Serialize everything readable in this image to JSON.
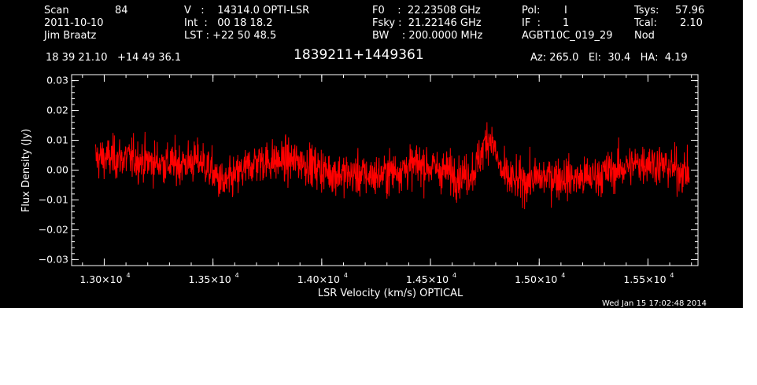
{
  "header": {
    "col1": {
      "scan_label": "Scan",
      "scan_value": "84",
      "date": "2011-10-10",
      "observer": "Jim Braatz"
    },
    "col2": {
      "v_line": "V   :    14314.0 OPTI-LSR",
      "int_line": "Int  :   00 18 18.2",
      "lst_line": "LST : +22 50 48.5"
    },
    "col3": {
      "f0_line": "F0    :  22.23508 GHz",
      "fsky_line": "Fsky :  21.22146 GHz",
      "bw_line": "BW    : 200.0000 MHz"
    },
    "col4": {
      "pol_label": "Pol:",
      "pol_value": "I",
      "if_label": "IF  :",
      "if_value": "1",
      "project": "AGBT10C_019_29"
    },
    "col5": {
      "tsys_label": "Tsys:",
      "tsys_value": "57.96",
      "tcal_label": "Tcal:",
      "tcal_value": "2.10",
      "mode": "Nod"
    },
    "coords": "18 39 21.10   +14 49 36.1",
    "source": "1839211+1449361",
    "pointing": "Az: 265.0   El:  30.4   HA:  4.19"
  },
  "timestamp": "Wed Jan 15 17:02:48 2014",
  "chart_data": {
    "type": "line",
    "title": "1839211+1449361",
    "xlabel": "LSR Velocity (km/s) OPTICAL",
    "ylabel": "Flux Density (Jy)",
    "xlim": [
      12850,
      15730
    ],
    "ylim": [
      -0.032,
      0.032
    ],
    "x_ticks": [
      {
        "value": 13000,
        "mantissa": "1.30",
        "exponent": "4"
      },
      {
        "value": 13500,
        "mantissa": "1.35",
        "exponent": "4"
      },
      {
        "value": 14000,
        "mantissa": "1.40",
        "exponent": "4"
      },
      {
        "value": 14500,
        "mantissa": "1.45",
        "exponent": "4"
      },
      {
        "value": 15000,
        "mantissa": "1.50",
        "exponent": "4"
      },
      {
        "value": 15500,
        "mantissa": "1.55",
        "exponent": "4"
      }
    ],
    "y_ticks": [
      {
        "value": 0.03,
        "label": "0.03"
      },
      {
        "value": 0.02,
        "label": "0.02"
      },
      {
        "value": 0.01,
        "label": "0.01"
      },
      {
        "value": 0.0,
        "label": "0.00"
      },
      {
        "value": -0.01,
        "label": "−0.01"
      },
      {
        "value": -0.02,
        "label": "−0.02"
      },
      {
        "value": -0.03,
        "label": "−0.03"
      }
    ],
    "grid": false,
    "series": [
      {
        "color": "#ff0000",
        "x_range": [
          12960,
          15690
        ],
        "noise_rms": 0.0055,
        "baseline_trend": [
          [
            12960,
            0.004
          ],
          [
            13100,
            0.004
          ],
          [
            13300,
            0.002
          ],
          [
            13450,
            0.003
          ],
          [
            13550,
            -0.005
          ],
          [
            13700,
            0.003
          ],
          [
            13900,
            0.003
          ],
          [
            14050,
            -0.001
          ],
          [
            14250,
            -0.002
          ],
          [
            14450,
            0.002
          ],
          [
            14650,
            -0.002
          ],
          [
            14720,
            0.0
          ],
          [
            14900,
            -0.004
          ],
          [
            15050,
            -0.002
          ],
          [
            15200,
            -0.003
          ],
          [
            15350,
            0.0
          ],
          [
            15500,
            0.003
          ],
          [
            15690,
            -0.001
          ]
        ],
        "peak": {
          "x": 14770,
          "amplitude": 0.012,
          "width": 30
        },
        "n_points": 1800
      }
    ]
  }
}
